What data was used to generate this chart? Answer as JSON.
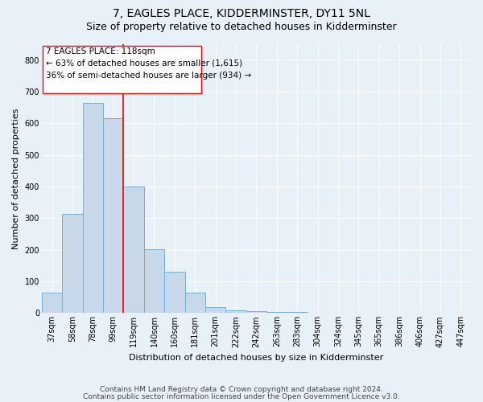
{
  "title": "7, EAGLES PLACE, KIDDERMINSTER, DY11 5NL",
  "subtitle": "Size of property relative to detached houses in Kidderminster",
  "xlabel": "Distribution of detached houses by size in Kidderminster",
  "ylabel": "Number of detached properties",
  "categories": [
    "37sqm",
    "58sqm",
    "78sqm",
    "99sqm",
    "119sqm",
    "140sqm",
    "160sqm",
    "181sqm",
    "201sqm",
    "222sqm",
    "242sqm",
    "263sqm",
    "283sqm",
    "304sqm",
    "324sqm",
    "345sqm",
    "365sqm",
    "386sqm",
    "406sqm",
    "427sqm",
    "447sqm"
  ],
  "values": [
    65,
    313,
    665,
    617,
    400,
    203,
    130,
    65,
    20,
    9,
    5,
    4,
    3,
    2,
    1,
    0,
    0,
    0,
    0,
    0,
    2
  ],
  "bar_color": "#c8d8eb",
  "bar_edge_color": "#7aadd4",
  "ylim": [
    0,
    850
  ],
  "yticks": [
    0,
    100,
    200,
    300,
    400,
    500,
    600,
    700,
    800
  ],
  "property_line_label": "7 EAGLES PLACE: 118sqm",
  "annotation_line1": "← 63% of detached houses are smaller (1,615)",
  "annotation_line2": "36% of semi-detached houses are larger (934) →",
  "footer_line1": "Contains HM Land Registry data © Crown copyright and database right 2024.",
  "footer_line2": "Contains public sector information licensed under the Open Government Licence v3.0.",
  "background_color": "#e8f0f8",
  "plot_background_color": "#e8f0f8",
  "grid_color": "#ffffff",
  "title_fontsize": 10,
  "subtitle_fontsize": 9,
  "axis_label_fontsize": 8,
  "tick_fontsize": 7,
  "annotation_fontsize": 7.5,
  "footer_fontsize": 6.5
}
